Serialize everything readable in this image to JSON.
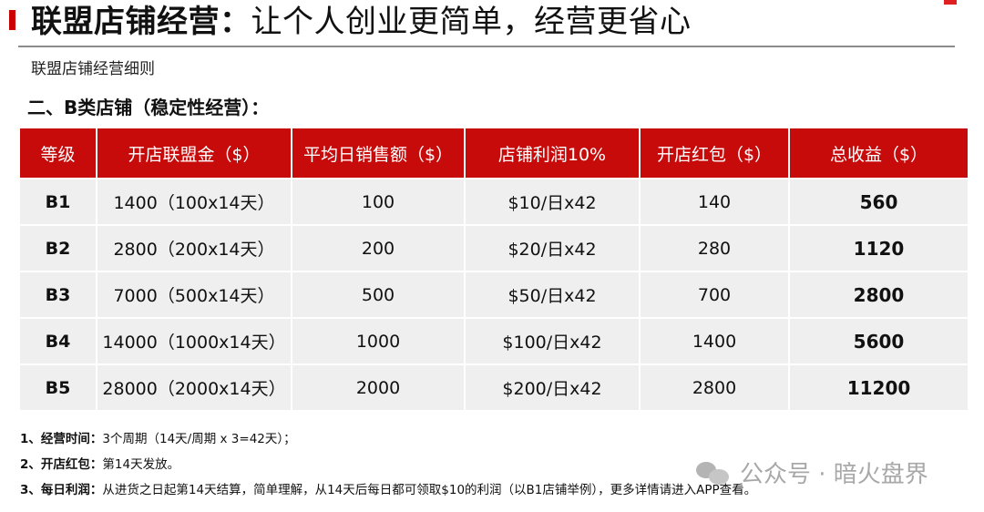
{
  "title": {
    "bold": "联盟店铺经营：",
    "regular": "让个人创业更简单，经营更省心"
  },
  "subtitle": "联盟店铺经营细则",
  "section_heading": "二、B类店铺（稳定性经营）：",
  "table": {
    "headers": [
      "等级",
      "开店联盟金（$）",
      "平均日销售额（$）",
      "店铺利润10%",
      "开店红包（$）",
      "总收益（$）"
    ],
    "rows": [
      {
        "level": "B1",
        "deposit": "1400（100x14天）",
        "daily_sales": "100",
        "profit": "$10/日x42",
        "red_packet": "140",
        "total": "560"
      },
      {
        "level": "B2",
        "deposit": "2800（200x14天）",
        "daily_sales": "200",
        "profit": "$20/日x42",
        "red_packet": "280",
        "total": "1120"
      },
      {
        "level": "B3",
        "deposit": "7000（500x14天）",
        "daily_sales": "500",
        "profit": "$50/日x42",
        "red_packet": "700",
        "total": "2800"
      },
      {
        "level": "B4",
        "deposit": "14000（1000x14天）",
        "daily_sales": "1000",
        "profit": "$100/日x42",
        "red_packet": "1400",
        "total": "5600"
      },
      {
        "level": "B5",
        "deposit": "28000（2000x14天）",
        "daily_sales": "2000",
        "profit": "$200/日x42",
        "red_packet": "2800",
        "total": "11200"
      }
    ]
  },
  "notes": [
    {
      "key": "1、经营时间：",
      "text": "3个周期（14天/周期 x 3=42天）；"
    },
    {
      "key": "2、开店红包：",
      "text": "第14天发放。"
    },
    {
      "key": "3、每日利润：",
      "text": "从进货之日起第14天结算，简单理解，从14天后每日都可领取$10的利润（以B1店铺举例），更多详情请进入APP查看。"
    }
  ],
  "watermark": "公众号 · 暗火盘界",
  "colors": {
    "accent": "#cc0000",
    "header_bg": "#c70a0a",
    "row_bg": "#efefef"
  }
}
